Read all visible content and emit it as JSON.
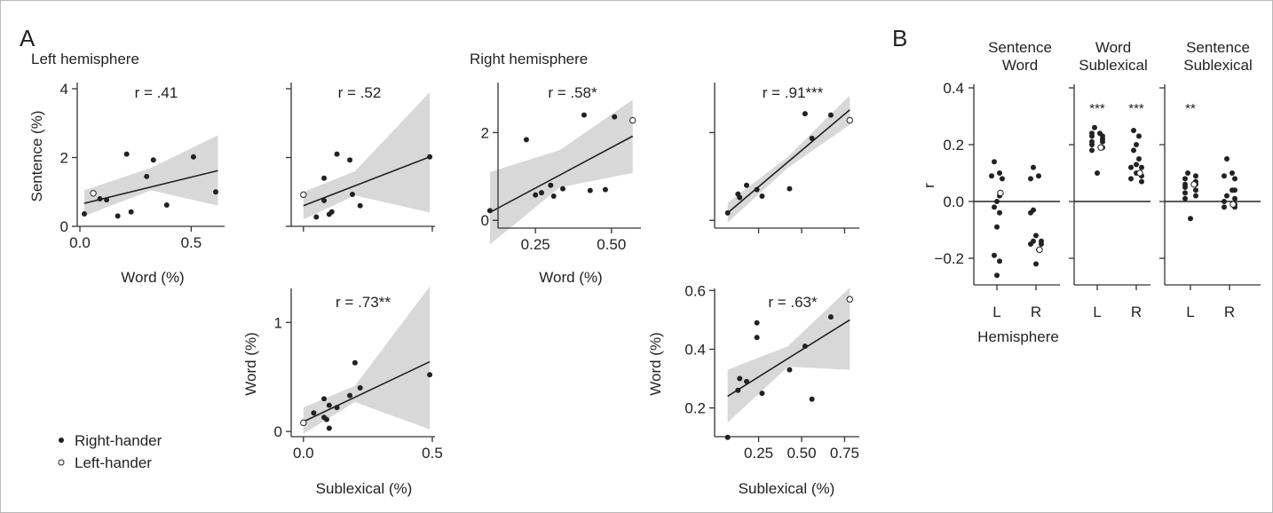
{
  "panel_labels": {
    "a": "A",
    "b": "B"
  },
  "section_titles": {
    "left": "Left hemisphere",
    "right": "Right hemisphere"
  },
  "legend": {
    "right_hander": "Right-hander",
    "left_hander": "Left-hander"
  },
  "chart_data": [
    {
      "id": "left-sentence-word",
      "type": "scatter",
      "xlabel": "Word (%)",
      "ylabel": "Sentence (%)",
      "xlim": [
        0.0,
        0.65
      ],
      "ylim": [
        0,
        4
      ],
      "xticks": [
        0.0,
        0.5
      ],
      "xtick_labels": [
        "0.0",
        "0.5"
      ],
      "yticks": [
        0,
        2,
        4
      ],
      "ytick_labels": [
        "0",
        "2",
        "4"
      ],
      "annotation": "r = .41",
      "fit": [
        [
          0.02,
          0.67
        ],
        [
          0.62,
          1.62
        ]
      ],
      "band": {
        "x": [
          0.02,
          0.32,
          0.62
        ],
        "upper": [
          1.05,
          1.7,
          2.65
        ],
        "lower": [
          0.3,
          1.05,
          0.6
        ]
      },
      "points": [
        [
          0.02,
          0.36
        ],
        [
          0.09,
          0.8
        ],
        [
          0.12,
          0.77
        ],
        [
          0.17,
          0.3
        ],
        [
          0.21,
          2.1
        ],
        [
          0.23,
          0.42
        ],
        [
          0.3,
          1.45
        ],
        [
          0.33,
          1.93
        ],
        [
          0.39,
          0.62
        ],
        [
          0.51,
          2.02
        ],
        [
          0.61,
          1.0
        ]
      ],
      "left_hander": [
        [
          0.06,
          0.96
        ]
      ]
    },
    {
      "id": "left-sentence-sublexical",
      "type": "scatter",
      "xlabel": "",
      "ylabel": "",
      "xlim": [
        -0.02,
        0.5
      ],
      "ylim": [
        0,
        4
      ],
      "xticks": [
        0.0,
        0.5
      ],
      "xtick_labels": [
        "",
        ""
      ],
      "yticks": [
        0,
        2,
        4
      ],
      "ytick_labels": [
        "",
        "",
        ""
      ],
      "annotation": "r = .52",
      "fit": [
        [
          0.0,
          0.6
        ],
        [
          0.49,
          2.02
        ]
      ],
      "band": {
        "x": [
          0.0,
          0.2,
          0.49
        ],
        "upper": [
          1.0,
          1.6,
          3.9
        ],
        "lower": [
          0.2,
          0.9,
          0.4
        ]
      },
      "points": [
        [
          0.05,
          0.27
        ],
        [
          0.08,
          0.75
        ],
        [
          0.08,
          1.4
        ],
        [
          0.1,
          0.35
        ],
        [
          0.11,
          0.42
        ],
        [
          0.13,
          2.1
        ],
        [
          0.18,
          1.93
        ],
        [
          0.19,
          0.93
        ],
        [
          0.22,
          0.6
        ],
        [
          0.49,
          2.02
        ]
      ],
      "left_hander": [
        [
          0.0,
          0.92
        ]
      ]
    },
    {
      "id": "right-sentence-word",
      "type": "scatter",
      "xlabel": "Word (%)",
      "ylabel": "",
      "xlim": [
        0.08,
        0.6
      ],
      "ylim": [
        -0.4,
        3.0
      ],
      "xticks": [
        0.25,
        0.5
      ],
      "xtick_labels": [
        "0.25",
        "0.50"
      ],
      "yticks": [
        0,
        2
      ],
      "ytick_labels": [
        "0",
        "2"
      ],
      "annotation": "r = .58*",
      "fit": [
        [
          0.1,
          0.18
        ],
        [
          0.57,
          1.92
        ]
      ],
      "band": {
        "x": [
          0.1,
          0.33,
          0.57
        ],
        "upper": [
          1.1,
          1.6,
          2.75
        ],
        "lower": [
          -0.55,
          0.75,
          1.08
        ]
      },
      "points": [
        [
          0.1,
          0.22
        ],
        [
          0.22,
          1.84
        ],
        [
          0.25,
          0.58
        ],
        [
          0.27,
          0.63
        ],
        [
          0.3,
          0.8
        ],
        [
          0.31,
          0.55
        ],
        [
          0.34,
          0.72
        ],
        [
          0.41,
          2.4
        ],
        [
          0.43,
          0.68
        ],
        [
          0.48,
          0.7
        ],
        [
          0.51,
          2.36
        ]
      ],
      "left_hander": [
        [
          0.57,
          2.28
        ]
      ]
    },
    {
      "id": "right-sentence-sublexical",
      "type": "scatter",
      "xlabel": "",
      "ylabel": "",
      "xlim": [
        0.02,
        0.82
      ],
      "ylim": [
        -0.4,
        3.0
      ],
      "xticks": [
        0.25,
        0.5,
        0.75
      ],
      "xtick_labels": [
        "",
        "",
        ""
      ],
      "yticks": [
        0,
        2
      ],
      "ytick_labels": [
        "",
        ""
      ],
      "annotation": "r = .91***",
      "fit": [
        [
          0.07,
          0.17
        ],
        [
          0.78,
          2.52
        ]
      ],
      "band": {
        "x": [
          0.07,
          0.42,
          0.78
        ],
        "upper": [
          0.4,
          1.45,
          2.85
        ],
        "lower": [
          -0.05,
          1.2,
          2.18
        ]
      },
      "points": [
        [
          0.07,
          0.17
        ],
        [
          0.13,
          0.6
        ],
        [
          0.14,
          0.52
        ],
        [
          0.18,
          0.8
        ],
        [
          0.24,
          0.7
        ],
        [
          0.27,
          0.55
        ],
        [
          0.43,
          0.72
        ],
        [
          0.52,
          2.43
        ],
        [
          0.56,
          1.87
        ],
        [
          0.67,
          2.4
        ]
      ],
      "left_hander": [
        [
          0.78,
          2.28
        ]
      ]
    },
    {
      "id": "word-sublexical-left",
      "type": "scatter",
      "xlabel": "Sublexical (%)",
      "ylabel": "Word (%)",
      "xlim": [
        -0.02,
        0.5
      ],
      "ylim": [
        -0.08,
        1.32
      ],
      "xticks": [
        0.0,
        0.5
      ],
      "xtick_labels": [
        "0.0",
        "0.5"
      ],
      "yticks": [
        0,
        1
      ],
      "ytick_labels": [
        "0",
        "1"
      ],
      "annotation": "r = .73**",
      "fit": [
        [
          0.0,
          0.09
        ],
        [
          0.49,
          0.64
        ]
      ],
      "band": {
        "x": [
          0.0,
          0.2,
          0.49
        ],
        "upper": [
          0.22,
          0.42,
          1.33
        ],
        "lower": [
          -0.02,
          0.27,
          0.02
        ]
      },
      "points": [
        [
          0.04,
          0.17
        ],
        [
          0.08,
          0.3
        ],
        [
          0.08,
          0.13
        ],
        [
          0.09,
          0.11
        ],
        [
          0.1,
          0.03
        ],
        [
          0.1,
          0.24
        ],
        [
          0.13,
          0.22
        ],
        [
          0.18,
          0.33
        ],
        [
          0.2,
          0.63
        ],
        [
          0.22,
          0.4
        ],
        [
          0.49,
          0.52
        ]
      ],
      "left_hander": [
        [
          0.0,
          0.08
        ]
      ]
    },
    {
      "id": "word-sublexical-right",
      "type": "scatter",
      "xlabel": "Sublexical (%)",
      "ylabel": "Word (%)",
      "xlim": [
        0.02,
        0.82
      ],
      "ylim": [
        0.09,
        0.61
      ],
      "xticks": [
        0.25,
        0.5,
        0.75
      ],
      "xtick_labels": [
        "0.25",
        "0.50",
        "0.75"
      ],
      "yticks": [
        0.2,
        0.4,
        0.6
      ],
      "ytick_labels": [
        "0.2",
        "0.4",
        "0.6"
      ],
      "annotation": "r = .63*",
      "fit": [
        [
          0.07,
          0.24
        ],
        [
          0.78,
          0.5
        ]
      ],
      "band": {
        "x": [
          0.07,
          0.42,
          0.78
        ],
        "upper": [
          0.33,
          0.41,
          0.61
        ],
        "lower": [
          0.15,
          0.34,
          0.33
        ]
      },
      "points": [
        [
          0.07,
          0.1
        ],
        [
          0.13,
          0.26
        ],
        [
          0.14,
          0.3
        ],
        [
          0.18,
          0.29
        ],
        [
          0.24,
          0.49
        ],
        [
          0.24,
          0.44
        ],
        [
          0.27,
          0.25
        ],
        [
          0.43,
          0.33
        ],
        [
          0.52,
          0.41
        ],
        [
          0.56,
          0.23
        ],
        [
          0.67,
          0.51
        ]
      ],
      "left_hander": [
        [
          0.78,
          0.57
        ]
      ]
    },
    {
      "id": "b-sentence-word",
      "type": "scatter",
      "title": "Sentence\nWord",
      "categories": [
        "L",
        "R"
      ],
      "ylabel": "r",
      "xlabel": "Hemisphere",
      "ylim": [
        -0.3,
        0.4
      ],
      "yticks": [
        -0.2,
        0.0,
        0.2,
        0.4
      ],
      "ytick_labels": [
        "−0.2",
        "0.0",
        "0.2",
        "0.4"
      ],
      "significance": [
        "",
        ""
      ],
      "L": [
        0.14,
        0.1,
        0.09,
        0.08,
        0.02,
        0.0,
        -0.02,
        -0.04,
        -0.09,
        -0.19,
        -0.21,
        -0.26
      ],
      "R": [
        0.12,
        0.09,
        0.08,
        -0.03,
        -0.04,
        -0.12,
        -0.14,
        -0.14,
        -0.15,
        -0.15,
        -0.17,
        -0.22
      ],
      "left_hander": {
        "L": 0.03,
        "R": -0.17
      }
    },
    {
      "id": "b-word-sublexical",
      "type": "scatter",
      "title": "Word\nSublexical",
      "categories": [
        "L",
        "R"
      ],
      "ylim": [
        -0.3,
        0.4
      ],
      "yticks": [
        -0.2,
        0.0,
        0.2,
        0.4
      ],
      "ytick_labels": [
        "",
        "",
        "",
        ""
      ],
      "significance": [
        "***",
        "***"
      ],
      "L": [
        0.26,
        0.24,
        0.24,
        0.23,
        0.23,
        0.22,
        0.21,
        0.21,
        0.2,
        0.19,
        0.18,
        0.1
      ],
      "R": [
        0.25,
        0.23,
        0.2,
        0.18,
        0.15,
        0.13,
        0.12,
        0.12,
        0.1,
        0.09,
        0.08,
        0.07
      ],
      "left_hander": {
        "L": 0.19,
        "R": 0.1
      }
    },
    {
      "id": "b-sentence-sublexical",
      "type": "scatter",
      "title": "Sentence\nSublexical",
      "categories": [
        "L",
        "R"
      ],
      "ylim": [
        -0.3,
        0.4
      ],
      "yticks": [
        -0.2,
        0.0,
        0.2,
        0.4
      ],
      "ytick_labels": [
        "",
        "",
        "",
        ""
      ],
      "significance": [
        "**",
        ""
      ],
      "L": [
        0.1,
        0.09,
        0.08,
        0.07,
        0.06,
        0.06,
        0.05,
        0.04,
        0.03,
        0.02,
        0.01,
        -0.06
      ],
      "R": [
        0.15,
        0.1,
        0.09,
        0.08,
        0.04,
        0.04,
        0.02,
        0.01,
        0.0,
        -0.01,
        -0.02,
        -0.02
      ],
      "left_hander": {
        "L": 0.06,
        "R": -0.01
      }
    }
  ]
}
